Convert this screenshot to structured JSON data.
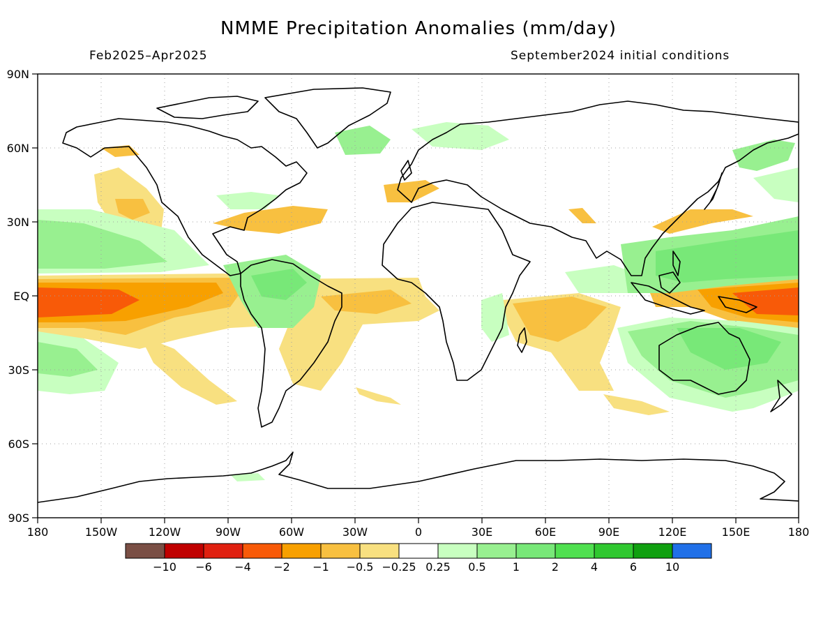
{
  "title": "NMME Precipitation Anomalies (mm/day)",
  "period": "Feb2025–Apr2025",
  "init": "September2024 initial conditions",
  "lat_labels": [
    "90N",
    "60N",
    "30N",
    "EQ",
    "30S",
    "60S",
    "90S"
  ],
  "lon_labels": [
    "180",
    "150W",
    "120W",
    "90W",
    "60W",
    "30W",
    "0",
    "30E",
    "60E",
    "90E",
    "120E",
    "150E",
    "180"
  ],
  "legend": {
    "colors": [
      "#7a4f45",
      "#c00000",
      "#e02010",
      "#f85a08",
      "#f8a000",
      "#f8c040",
      "#f8e080",
      "#ffffff",
      "#c8ffc0",
      "#98f090",
      "#78e878",
      "#50e050",
      "#30c830",
      "#10a010",
      "#2070e8"
    ],
    "labels": [
      "−10",
      "−6",
      "−4",
      "−2",
      "−1",
      "−0.5",
      "−0.25",
      "0.25",
      "0.5",
      "1",
      "2",
      "4",
      "6",
      "10"
    ]
  },
  "colors": {
    "dry_light": "#f8e080",
    "dry_mid": "#f8c040",
    "dry_strong": "#f8a000",
    "dry_vstrong": "#f85a08",
    "wet_light": "#c8ffc0",
    "wet_mid": "#98f090",
    "wet_strong": "#78e878",
    "wet_vstrong": "#50e050"
  }
}
